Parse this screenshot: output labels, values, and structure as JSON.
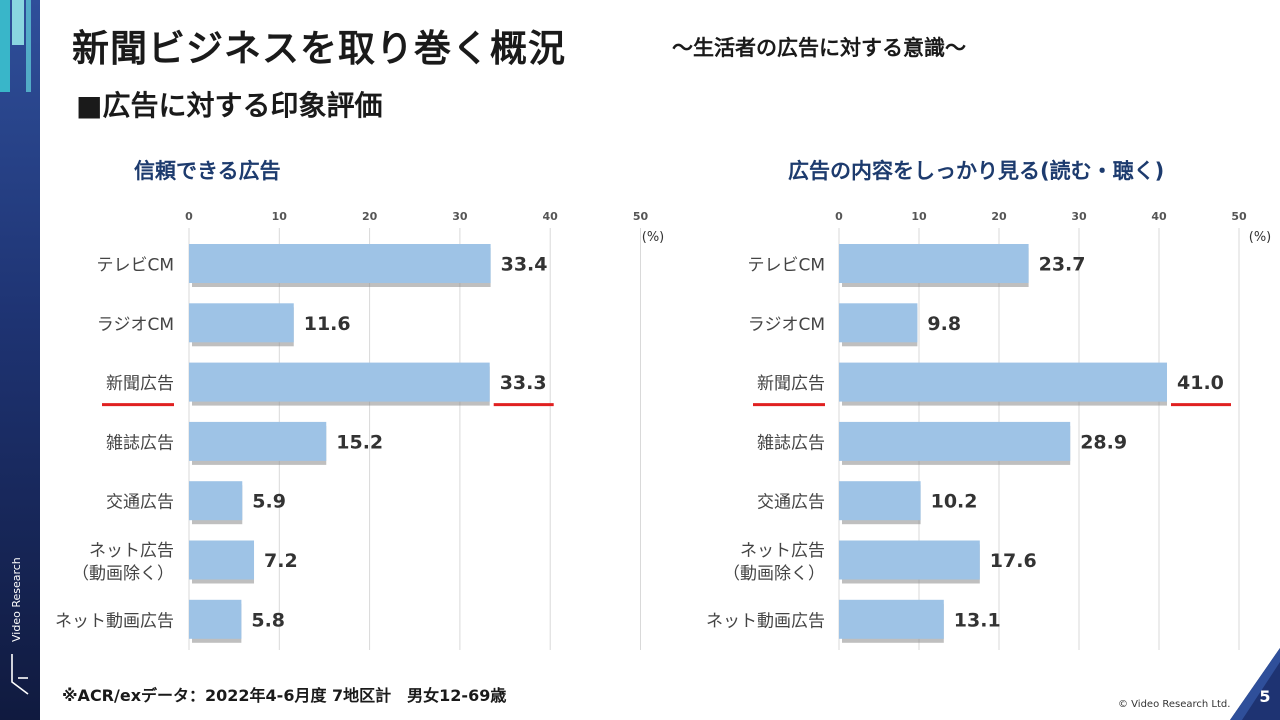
{
  "title": "新聞ビジネスを取り巻く概況",
  "subtitle": "〜生活者の広告に対する意識〜",
  "section_title": "■広告に対する印象評価",
  "footnote": "※ACR/exデータ：2022年4-6月度 7地区計　男女12-69歳",
  "copyright": "© Video Research Ltd.",
  "page_number": "5",
  "brand": "Video Research",
  "colors": {
    "bar": "#9ec3e6",
    "highlight": "#e02020",
    "title": "#1d3b6e",
    "sidebar": "#1e3372"
  },
  "chart_data": [
    {
      "type": "bar",
      "orientation": "horizontal",
      "title": "信頼できる広告",
      "unit_label": "(%)",
      "categories": [
        "テレビCM",
        "ラジオCM",
        "新聞広告",
        "雑誌広告",
        "交通広告",
        "ネット広告\n（動画除く）",
        "ネット動画広告"
      ],
      "values": [
        33.4,
        11.6,
        33.3,
        15.2,
        5.9,
        7.2,
        5.8
      ],
      "value_labels": [
        "33.4",
        "11.6",
        "33.3",
        "15.2",
        "5.9",
        "7.2",
        "5.8"
      ],
      "highlight_index": 2,
      "xlim": [
        0,
        50
      ],
      "ticks": [
        "0",
        "10",
        "20",
        "30",
        "40",
        "50"
      ],
      "grid": true
    },
    {
      "type": "bar",
      "orientation": "horizontal",
      "title": "広告の内容をしっかり見る(読む・聴く)",
      "unit_label": "(%)",
      "categories": [
        "テレビCM",
        "ラジオCM",
        "新聞広告",
        "雑誌広告",
        "交通広告",
        "ネット広告\n（動画除く）",
        "ネット動画広告"
      ],
      "values": [
        23.7,
        9.8,
        41.0,
        28.9,
        10.2,
        17.6,
        13.1
      ],
      "value_labels": [
        "23.7",
        "9.8",
        "41.0",
        "28.9",
        "10.2",
        "17.6",
        "13.1"
      ],
      "highlight_index": 2,
      "xlim": [
        0,
        50
      ],
      "ticks": [
        "0",
        "10",
        "20",
        "30",
        "40",
        "50"
      ],
      "grid": true
    }
  ]
}
